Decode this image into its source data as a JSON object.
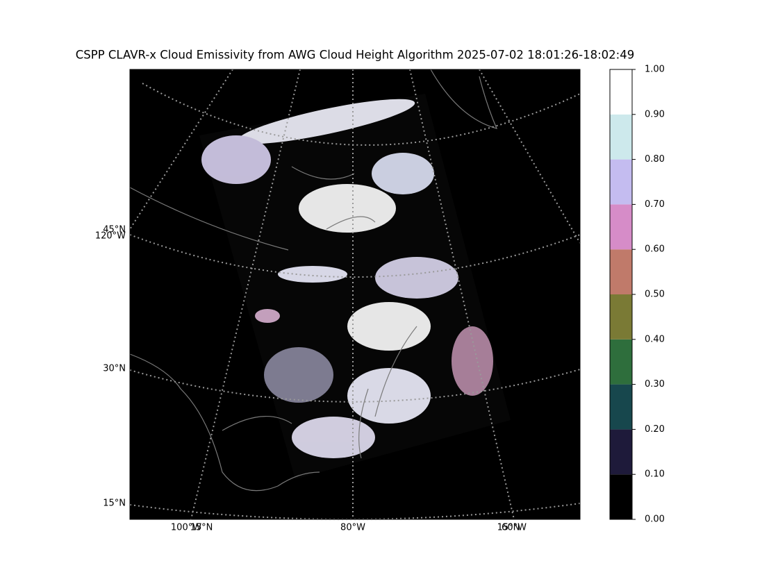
{
  "title": "CSPP CLAVR-x Cloud Emissivity from AWG Cloud Height Algorithm 2025-07-02 18:01:26-18:02:49",
  "map": {
    "lat_labels": [
      "45°N",
      "30°N",
      "15°N"
    ],
    "lon_labels": [
      "120°W",
      "100°W",
      "15°N",
      "80°W",
      "15°N",
      "60°W"
    ]
  },
  "colorbar": {
    "lim": [
      0,
      1
    ],
    "ticks": [
      {
        "value": 0,
        "label": "0.00"
      },
      {
        "value": 0.1,
        "label": "0.10"
      },
      {
        "value": 0.2,
        "label": "0.20"
      },
      {
        "value": 0.3,
        "label": "0.30"
      },
      {
        "value": 0.4,
        "label": "0.40"
      },
      {
        "value": 0.5,
        "label": "0.50"
      },
      {
        "value": 0.6,
        "label": "0.60"
      },
      {
        "value": 0.7,
        "label": "0.70"
      },
      {
        "value": 0.8,
        "label": "0.80"
      },
      {
        "value": 0.9,
        "label": "0.90"
      },
      {
        "value": 1,
        "label": "1.00"
      }
    ],
    "colors": [
      "#000000",
      "#1e1a3a",
      "#17474d",
      "#2e6e3c",
      "#7a7a35",
      "#c07a6a",
      "#d68cc8",
      "#c4bcf0",
      "#cde9ec",
      "#ffffff"
    ]
  }
}
